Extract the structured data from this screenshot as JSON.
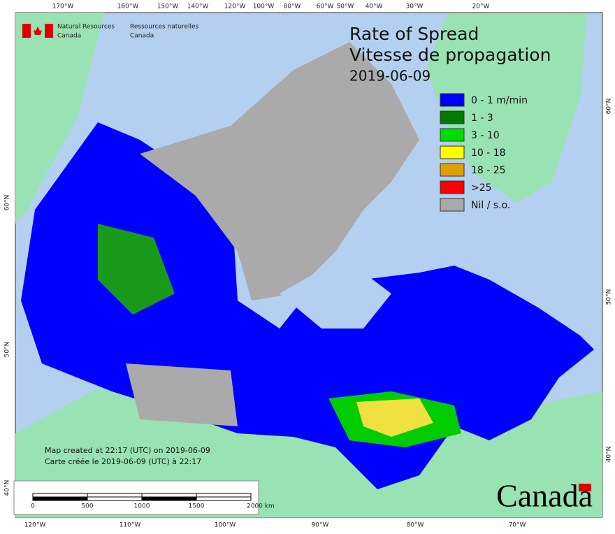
{
  "header": {
    "agency_en": "Natural Resources",
    "agency_en_2": "Canada",
    "agency_fr": "Ressources naturelles",
    "agency_fr_2": "Canada",
    "title_en": "Rate of Spread",
    "title_fr": "Vitesse de propagation",
    "date": "2019-06-09"
  },
  "legend": {
    "items": [
      {
        "label": "0 - 1 m/min",
        "color": "#0000ff"
      },
      {
        "label": "1 - 3",
        "color": "#007a00"
      },
      {
        "label": "3 - 10",
        "color": "#00dd00"
      },
      {
        "label": "10 - 18",
        "color": "#ffff00"
      },
      {
        "label": "18 - 25",
        "color": "#e0a000"
      },
      {
        "label": ">25",
        "color": "#ff0000"
      },
      {
        "label": "Nil / s.o.",
        "color": "#aaaaaa"
      }
    ]
  },
  "graticule": {
    "top": [
      "170°W",
      "160°W",
      "150°W",
      "140°W",
      "120°W",
      "100°W",
      "80°W",
      "60°W",
      "50°W",
      "40°W",
      "30°W",
      "20°W"
    ],
    "bottom": [
      "120°W",
      "110°W",
      "100°W",
      "90°W",
      "80°W",
      "70°W"
    ],
    "left": [
      "60°N",
      "50°N",
      "40°N"
    ],
    "right": [
      "60°N",
      "50°N",
      "40°N"
    ]
  },
  "notes": {
    "line_en": "Map created at 22:17 (UTC) on 2019-06-09",
    "line_fr": "Carte créée le 2019-06-09 (UTC) à 22:17"
  },
  "scale_bar": {
    "labels": [
      "0",
      "500",
      "1000",
      "1500",
      "2000 km"
    ]
  },
  "wordmark": "Canada"
}
